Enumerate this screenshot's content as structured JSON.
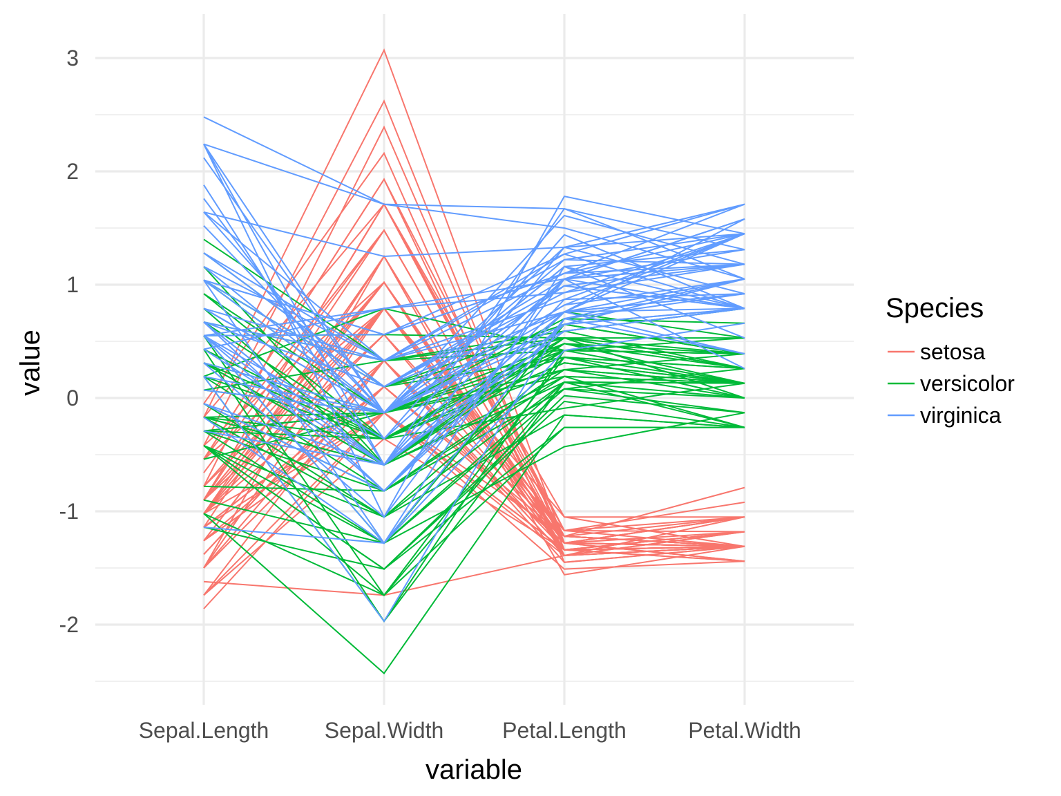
{
  "chart_data": {
    "type": "line",
    "subtype": "parallel-coordinates",
    "title": "",
    "xlabel": "variable",
    "ylabel": "value",
    "categories": [
      "Sepal.Length",
      "Sepal.Width",
      "Petal.Length",
      "Petal.Width"
    ],
    "yticks": [
      "3",
      "2",
      "1",
      "0",
      "-1",
      "-2"
    ],
    "ytick_values": [
      3,
      2,
      1,
      0,
      -1,
      -2
    ],
    "ylim": [
      -2.6,
      3.3
    ],
    "grid": true,
    "legend": {
      "title": "Species",
      "position": "right",
      "entries": [
        {
          "label": "setosa",
          "color": "#F8766D"
        },
        {
          "label": "versicolor",
          "color": "#00BA38"
        },
        {
          "label": "virginica",
          "color": "#619CFF"
        }
      ]
    },
    "series": [
      {
        "name": "setosa",
        "color": "#F8766D",
        "lines": [
          [
            -0.9,
            1.02,
            -1.34,
            -1.31
          ],
          [
            -1.14,
            -0.13,
            -1.34,
            -1.31
          ],
          [
            -1.38,
            0.33,
            -1.39,
            -1.31
          ],
          [
            -1.5,
            0.1,
            -1.28,
            -1.31
          ],
          [
            -1.02,
            1.25,
            -1.34,
            -1.31
          ],
          [
            -0.54,
            1.93,
            -1.17,
            -1.05
          ],
          [
            -1.5,
            0.79,
            -1.34,
            -1.18
          ],
          [
            -1.02,
            0.79,
            -1.28,
            -1.31
          ],
          [
            -1.74,
            -0.36,
            -1.34,
            -1.31
          ],
          [
            -1.14,
            0.1,
            -1.28,
            -1.44
          ],
          [
            -0.54,
            1.48,
            -1.28,
            -1.31
          ],
          [
            -1.26,
            0.79,
            -1.22,
            -1.31
          ],
          [
            -1.26,
            -0.13,
            -1.34,
            -1.44
          ],
          [
            -1.86,
            -0.13,
            -1.51,
            -1.44
          ],
          [
            -0.05,
            2.16,
            -1.45,
            -1.31
          ],
          [
            -0.17,
            3.07,
            -1.28,
            -1.05
          ],
          [
            -0.54,
            1.93,
            -1.39,
            -1.05
          ],
          [
            -0.9,
            1.02,
            -1.34,
            -1.18
          ],
          [
            -0.17,
            1.71,
            -1.17,
            -1.18
          ],
          [
            -0.9,
            1.71,
            -1.28,
            -1.18
          ],
          [
            -0.54,
            0.79,
            -1.17,
            -1.31
          ],
          [
            -0.9,
            1.48,
            -1.28,
            -1.05
          ],
          [
            -1.5,
            1.25,
            -1.56,
            -1.31
          ],
          [
            -0.9,
            0.56,
            -1.17,
            -0.92
          ],
          [
            -1.26,
            0.79,
            -1.05,
            -1.31
          ],
          [
            -1.02,
            -0.13,
            -1.22,
            -1.31
          ],
          [
            -1.02,
            0.79,
            -1.22,
            -1.05
          ],
          [
            -0.78,
            1.02,
            -1.28,
            -1.31
          ],
          [
            -0.78,
            0.79,
            -1.34,
            -1.31
          ],
          [
            -1.38,
            0.33,
            -1.22,
            -1.31
          ],
          [
            -1.26,
            0.1,
            -1.22,
            -1.31
          ],
          [
            -0.54,
            0.79,
            -1.28,
            -1.05
          ],
          [
            -0.78,
            2.39,
            -1.28,
            -1.44
          ],
          [
            -0.42,
            2.62,
            -1.34,
            -1.31
          ],
          [
            -1.14,
            0.1,
            -1.28,
            -1.31
          ],
          [
            -1.02,
            0.33,
            -1.45,
            -1.31
          ],
          [
            -0.42,
            1.02,
            -1.39,
            -1.31
          ],
          [
            -1.14,
            1.25,
            -1.34,
            -1.44
          ],
          [
            -1.74,
            -0.13,
            -1.39,
            -1.31
          ],
          [
            -0.9,
            0.79,
            -1.28,
            -1.31
          ],
          [
            -1.02,
            1.02,
            -1.39,
            -1.18
          ],
          [
            -1.62,
            -1.74,
            -1.39,
            -1.18
          ],
          [
            -1.74,
            0.33,
            -1.39,
            -1.31
          ],
          [
            -1.02,
            1.02,
            -1.22,
            -0.79
          ],
          [
            -0.9,
            1.71,
            -1.05,
            -1.05
          ],
          [
            -1.26,
            -0.13,
            -1.34,
            -1.18
          ],
          [
            -0.9,
            1.71,
            -1.22,
            -1.31
          ],
          [
            -1.5,
            0.33,
            -1.34,
            -1.31
          ],
          [
            -0.66,
            1.48,
            -1.28,
            -1.31
          ],
          [
            -1.02,
            0.56,
            -1.34,
            -1.31
          ]
        ]
      },
      {
        "name": "versicolor",
        "color": "#00BA38",
        "lines": [
          [
            1.4,
            0.33,
            0.53,
            0.26
          ],
          [
            0.67,
            0.33,
            0.42,
            0.39
          ],
          [
            1.28,
            0.1,
            0.65,
            0.39
          ],
          [
            -0.42,
            -1.74,
            0.14,
            0.13
          ],
          [
            0.79,
            -0.59,
            0.48,
            0.39
          ],
          [
            -0.17,
            -0.59,
            0.42,
            0.13
          ],
          [
            0.55,
            0.56,
            0.53,
            0.53
          ],
          [
            -1.14,
            -1.51,
            -0.26,
            -0.26
          ],
          [
            0.92,
            -0.36,
            0.48,
            0.13
          ],
          [
            -0.78,
            -0.82,
            0.08,
            0.26
          ],
          [
            -1.02,
            -2.43,
            -0.15,
            -0.26
          ],
          [
            0.07,
            -0.13,
            0.25,
            0.39
          ],
          [
            0.19,
            -1.97,
            0.14,
            -0.26
          ],
          [
            0.31,
            -0.36,
            0.53,
            0.26
          ],
          [
            -0.29,
            -0.36,
            -0.09,
            0.13
          ],
          [
            1.04,
            0.1,
            0.36,
            0.26
          ],
          [
            -0.29,
            -0.13,
            0.42,
            0.39
          ],
          [
            -0.05,
            -0.82,
            0.19,
            -0.26
          ],
          [
            0.43,
            -1.97,
            0.42,
            0.39
          ],
          [
            -0.29,
            -1.28,
            0.08,
            -0.13
          ],
          [
            0.07,
            0.33,
            0.59,
            0.79
          ],
          [
            0.31,
            -0.59,
            0.14,
            0.13
          ],
          [
            0.55,
            -1.28,
            0.65,
            0.39
          ],
          [
            0.31,
            -0.59,
            0.53,
            0.0
          ],
          [
            0.67,
            -0.36,
            0.31,
            0.13
          ],
          [
            0.92,
            -0.13,
            0.36,
            0.26
          ],
          [
            1.16,
            -0.59,
            0.59,
            0.26
          ],
          [
            1.04,
            -0.13,
            0.7,
            0.66
          ],
          [
            0.19,
            -0.36,
            0.42,
            0.39
          ],
          [
            -0.17,
            -1.05,
            -0.15,
            -0.26
          ],
          [
            -0.42,
            -1.51,
            0.02,
            -0.13
          ],
          [
            -0.42,
            -1.51,
            -0.03,
            -0.26
          ],
          [
            -0.05,
            -0.82,
            0.08,
            0.0
          ],
          [
            0.19,
            -0.82,
            0.76,
            0.53
          ],
          [
            -0.54,
            -0.13,
            0.42,
            0.39
          ],
          [
            0.19,
            0.79,
            0.42,
            0.53
          ],
          [
            1.04,
            0.1,
            0.53,
            0.39
          ],
          [
            0.55,
            -1.74,
            0.36,
            0.13
          ],
          [
            -0.29,
            -0.13,
            0.19,
            0.13
          ],
          [
            -0.42,
            -1.28,
            0.14,
            0.13
          ],
          [
            -0.42,
            -1.05,
            0.36,
            0.0
          ],
          [
            0.31,
            -0.13,
            0.48,
            0.26
          ],
          [
            -0.05,
            -1.05,
            0.14,
            0.0
          ],
          [
            -1.02,
            -1.74,
            -0.26,
            -0.26
          ],
          [
            -0.29,
            -0.82,
            0.25,
            0.13
          ],
          [
            -0.17,
            -0.13,
            0.25,
            0.0
          ],
          [
            -0.17,
            -0.36,
            0.25,
            0.13
          ],
          [
            0.43,
            -0.36,
            0.31,
            0.13
          ],
          [
            -0.9,
            -1.28,
            -0.43,
            -0.13
          ],
          [
            -0.17,
            -0.59,
            0.19,
            0.13
          ]
        ]
      },
      {
        "name": "virginica",
        "color": "#619CFF",
        "lines": [
          [
            0.55,
            0.56,
            1.27,
            1.71
          ],
          [
            -0.05,
            -0.82,
            0.76,
            0.92
          ],
          [
            1.52,
            -0.13,
            1.22,
            1.18
          ],
          [
            0.55,
            -0.36,
            1.05,
            0.79
          ],
          [
            0.79,
            -0.13,
            1.16,
            1.31
          ],
          [
            2.12,
            -0.13,
            1.61,
            1.18
          ],
          [
            -1.14,
            -1.28,
            0.42,
            0.66
          ],
          [
            1.76,
            -0.36,
            1.44,
            0.79
          ],
          [
            1.04,
            -1.28,
            1.16,
            0.79
          ],
          [
            1.64,
            1.25,
            1.33,
            1.71
          ],
          [
            0.79,
            0.33,
            0.76,
            1.05
          ],
          [
            0.67,
            -0.82,
            0.87,
            0.92
          ],
          [
            1.16,
            -0.13,
            0.99,
            1.18
          ],
          [
            -0.17,
            -1.28,
            0.7,
            1.05
          ],
          [
            -0.05,
            -0.59,
            0.76,
            1.58
          ],
          [
            0.67,
            0.33,
            0.87,
            1.45
          ],
          [
            0.79,
            -0.13,
            0.99,
            0.79
          ],
          [
            2.24,
            1.71,
            1.67,
            1.31
          ],
          [
            2.24,
            -1.05,
            1.78,
            1.45
          ],
          [
            0.19,
            -1.97,
            0.7,
            0.39
          ],
          [
            1.28,
            0.33,
            1.1,
            1.45
          ],
          [
            -0.29,
            -0.59,
            0.65,
            1.05
          ],
          [
            2.24,
            -0.59,
            1.67,
            1.05
          ],
          [
            0.55,
            -0.82,
            0.65,
            0.79
          ],
          [
            1.04,
            0.56,
            1.1,
            1.18
          ],
          [
            1.64,
            0.33,
            1.27,
            0.79
          ],
          [
            0.43,
            -0.59,
            0.59,
            0.79
          ],
          [
            0.31,
            -0.13,
            0.65,
            0.79
          ],
          [
            0.67,
            -0.59,
            1.05,
            1.18
          ],
          [
            1.64,
            -0.13,
            1.16,
            0.53
          ],
          [
            1.88,
            -0.59,
            1.33,
            0.92
          ],
          [
            2.48,
            1.71,
            1.5,
            1.05
          ],
          [
            0.67,
            -0.59,
            1.05,
            1.31
          ],
          [
            0.55,
            -0.59,
            0.76,
            0.39
          ],
          [
            0.31,
            -1.05,
            1.05,
            0.26
          ],
          [
            2.24,
            -0.13,
            1.33,
            1.45
          ],
          [
            0.55,
            0.79,
            1.05,
            1.58
          ],
          [
            0.67,
            0.1,
            0.99,
            0.79
          ],
          [
            0.19,
            -0.13,
            0.59,
            0.79
          ],
          [
            1.28,
            0.1,
            0.93,
            1.18
          ],
          [
            1.04,
            0.1,
            1.05,
            1.58
          ],
          [
            1.28,
            0.1,
            0.76,
            1.45
          ],
          [
            -0.05,
            -0.82,
            0.76,
            0.92
          ],
          [
            1.16,
            0.33,
            1.22,
            1.45
          ],
          [
            1.04,
            0.56,
            1.1,
            1.71
          ],
          [
            1.04,
            -0.13,
            0.82,
            1.45
          ],
          [
            0.55,
            -1.28,
            0.7,
            0.92
          ],
          [
            0.79,
            -0.13,
            0.82,
            1.05
          ],
          [
            0.43,
            0.79,
            0.93,
            1.45
          ],
          [
            0.07,
            -0.13,
            0.76,
            0.79
          ]
        ]
      }
    ]
  }
}
